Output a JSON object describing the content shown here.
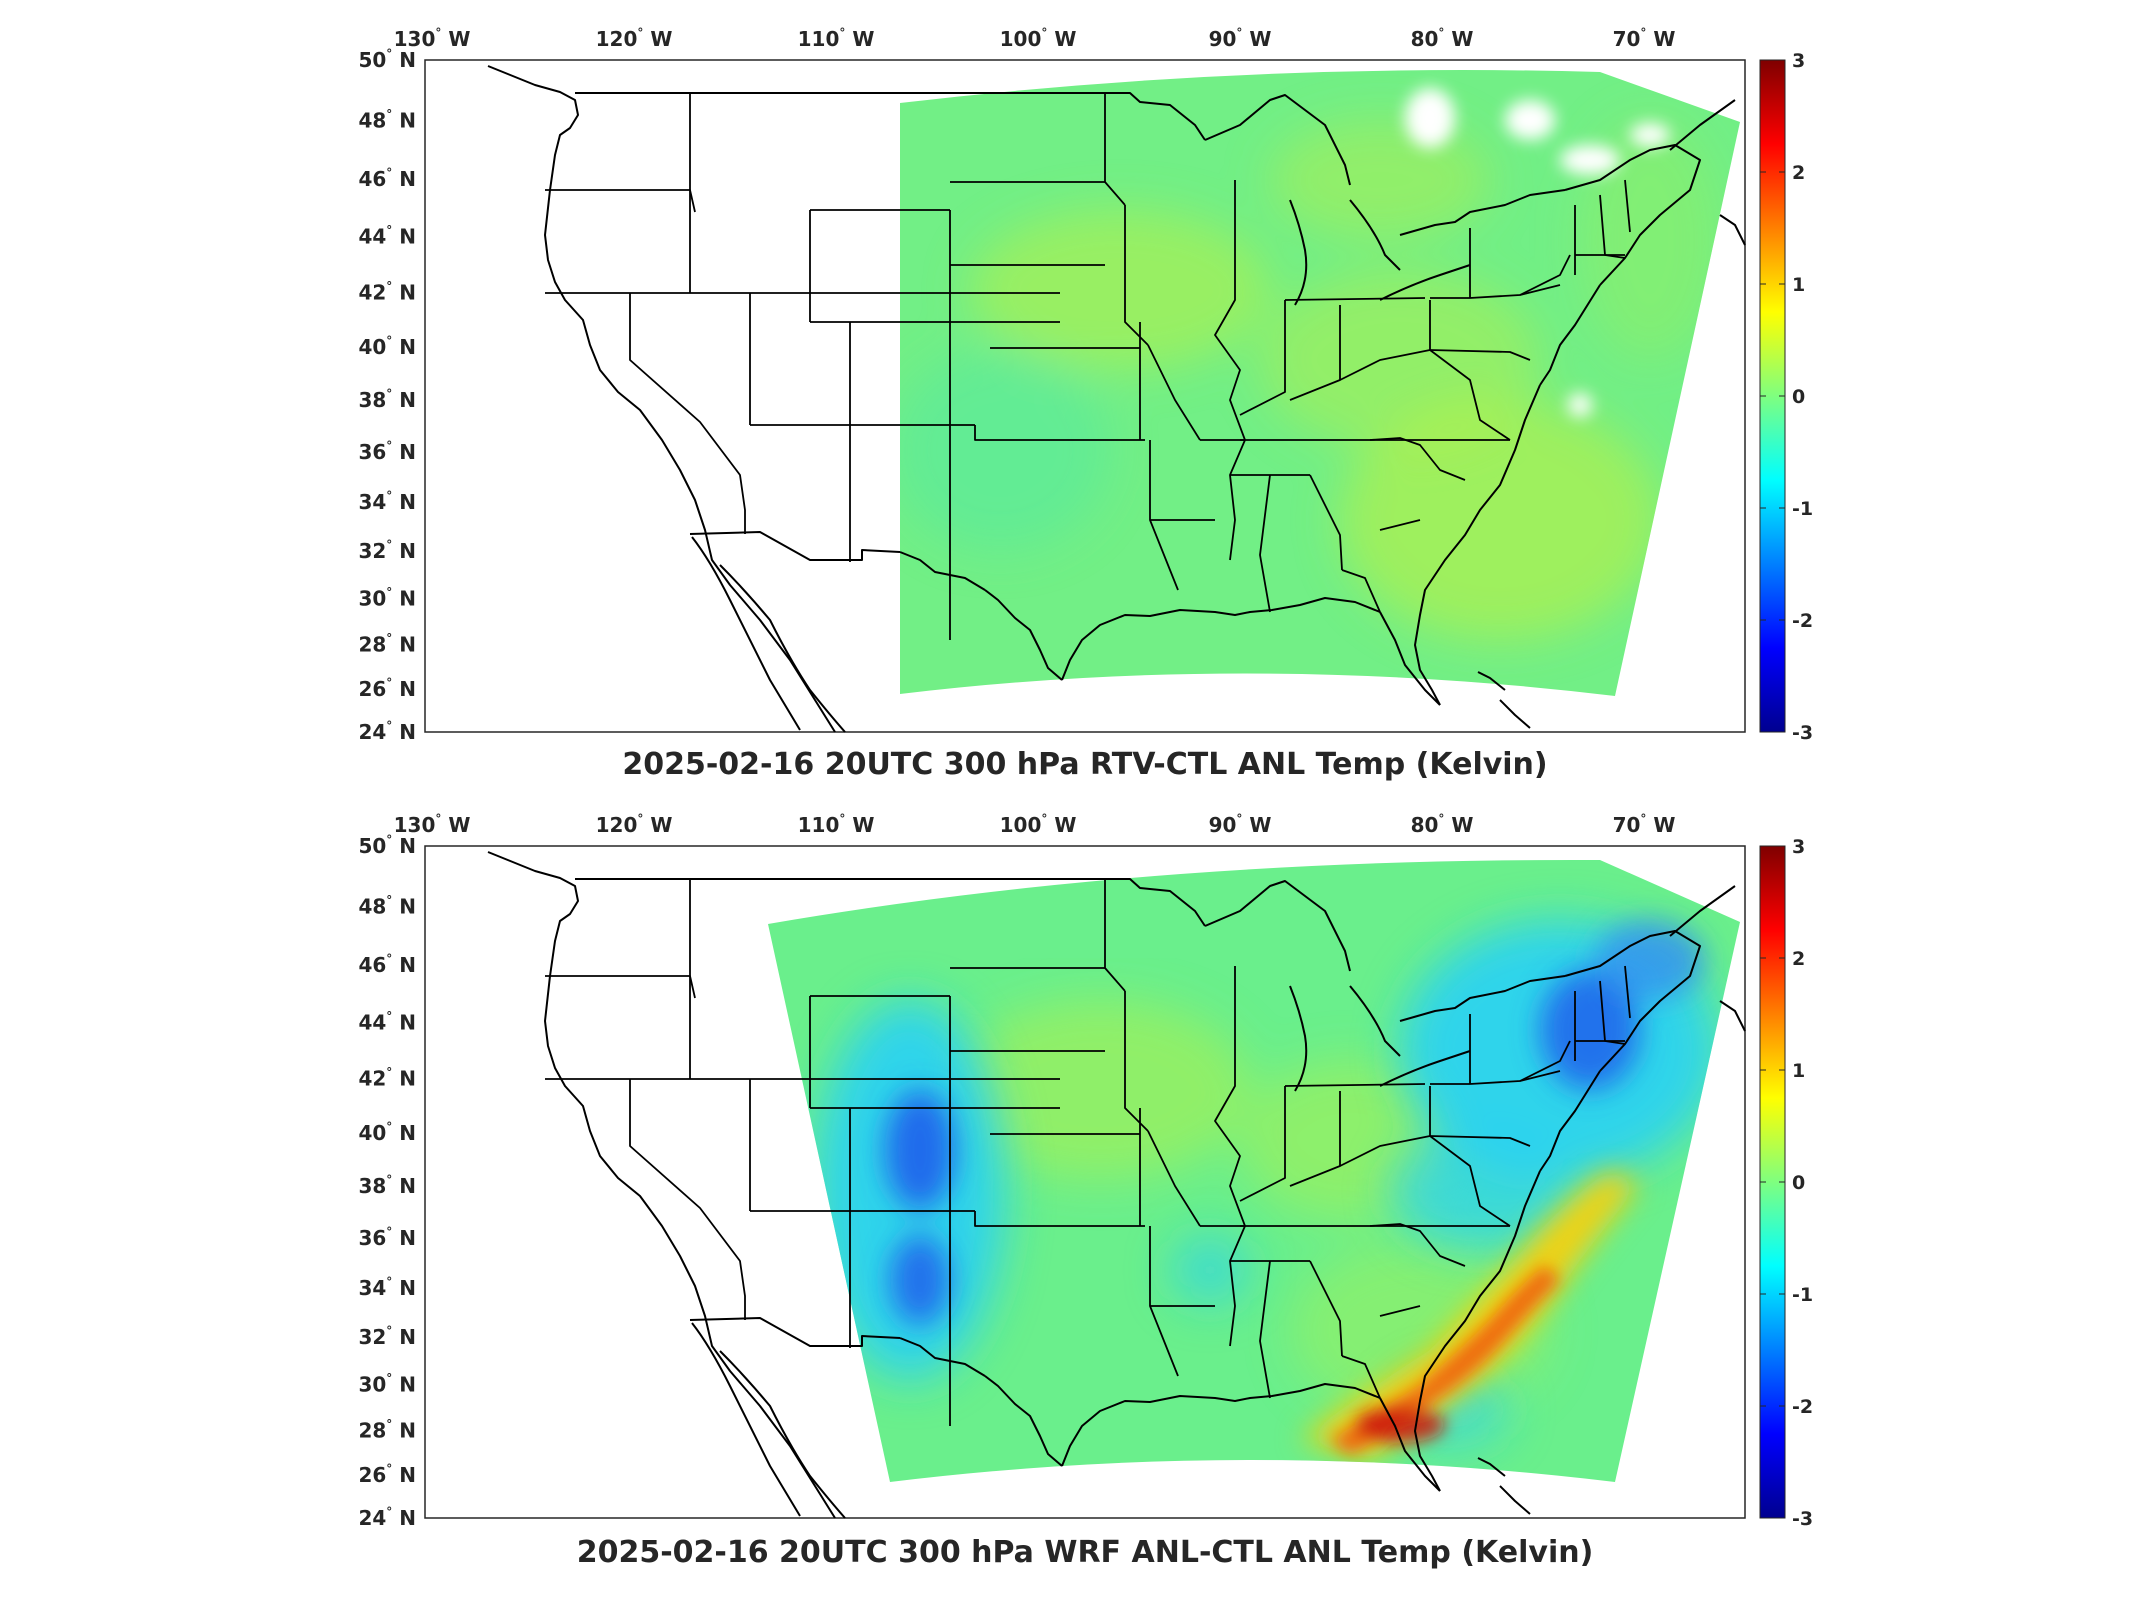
{
  "figure": {
    "panels": [
      {
        "id": "top",
        "title": "2025-02-16 20UTC 300 hPa RTV-CTL ANL Temp (Kelvin)",
        "lon_ticks": [
          -130,
          -120,
          -110,
          -100,
          -90,
          -80,
          -70
        ],
        "lat_ticks": [
          24,
          26,
          28,
          30,
          32,
          34,
          36,
          38,
          40,
          42,
          44,
          46,
          48,
          50
        ],
        "colorbar": {
          "min": -3,
          "max": 3,
          "ticks": [
            3,
            2,
            1,
            0,
            -1,
            -2,
            -3
          ],
          "colormap": "jet"
        }
      },
      {
        "id": "bottom",
        "title": "2025-02-16 20UTC 300 hPa WRF ANL-CTL ANL Temp (Kelvin)",
        "lon_ticks": [
          -130,
          -120,
          -110,
          -100,
          -90,
          -80,
          -70
        ],
        "lat_ticks": [
          24,
          26,
          28,
          30,
          32,
          34,
          36,
          38,
          40,
          42,
          44,
          46,
          48,
          50
        ],
        "colorbar": {
          "min": -3,
          "max": 3,
          "ticks": [
            3,
            2,
            1,
            0,
            -1,
            -2,
            -3
          ],
          "colormap": "jet"
        }
      }
    ],
    "lon_suffix": "W",
    "lat_suffix": "N",
    "degree_symbol": "°",
    "colors": {
      "outline": "#000000",
      "land_background": "#ffffff",
      "near_zero": "#66f08a",
      "slight_positive": "#c8f040",
      "negative": "#2cc8f8",
      "strong_negative": "#1040e0",
      "strong_positive": "#e03010"
    }
  }
}
